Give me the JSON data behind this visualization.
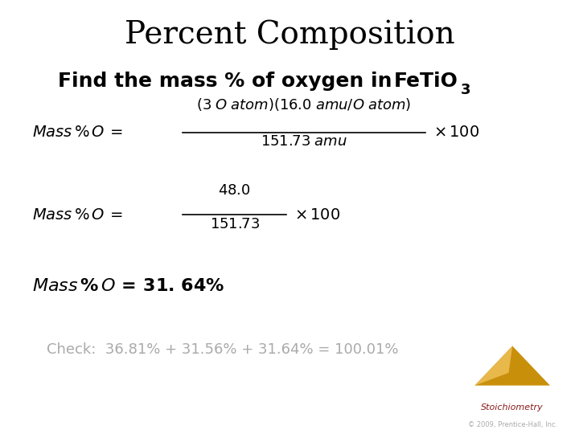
{
  "title": "Percent Composition",
  "title_fontsize": 28,
  "background_color": "#ffffff",
  "subtitle": "Find the mass % of oxygen in",
  "subtitle_fontsize": 18,
  "formula_main": "FeTiO",
  "formula_sub": "3",
  "eq1_label": "Mass % O =",
  "eq1_numerator": "(3 O atom)(16.0 amu/O atom)",
  "eq1_denominator": "151.73 amu",
  "eq1_right": "× 100",
  "eq2_label": "Mass % O =",
  "eq2_numerator": "48.0",
  "eq2_denominator": "151.73",
  "eq2_right": "× 100",
  "eq3_bold": "Mass % O = 31. 64%",
  "check_text": "Check:  36.81% + 31.56% + 31.64% = 100.01%",
  "stoich_text": "Stoichiometry",
  "copyright": "© 2009, Prentice-Hall, Inc.",
  "text_color": "#000000",
  "gray_color": "#aaaaaa",
  "stoich_red": "#8b1a1a",
  "gold_dark": "#c8900a",
  "gold_light": "#e8b84b"
}
